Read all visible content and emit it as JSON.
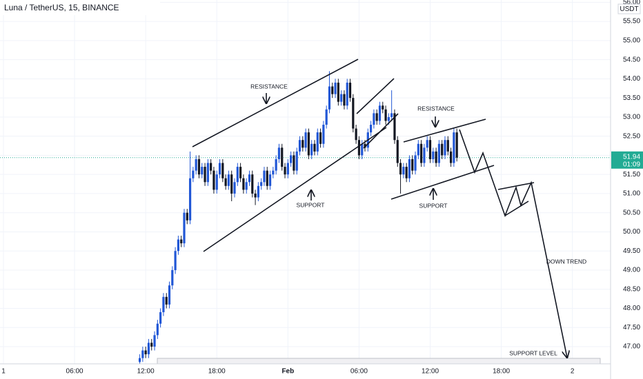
{
  "chart_data": {
    "type": "candlestick",
    "title": "Luna / TetherUS, 15, BINANCE",
    "currency": "USDT",
    "countdown": "01:09",
    "last_price": 51.94,
    "up_color": "#2157d6",
    "down_color": "#131722",
    "grid": true,
    "xlim": [
      -0.29,
      51.22
    ],
    "ylim": [
      46.55,
      56.06
    ],
    "xticks": [
      {
        "value": 0,
        "label": "1"
      },
      {
        "value": 6,
        "label": "06:00"
      },
      {
        "value": 12,
        "label": "12:00"
      },
      {
        "value": 18,
        "label": "18:00"
      },
      {
        "value": 24,
        "label": "Feb"
      },
      {
        "value": 30,
        "label": "06:00"
      },
      {
        "value": 36,
        "label": "12:00"
      },
      {
        "value": 42,
        "label": "18:00"
      },
      {
        "value": 48,
        "label": "2"
      }
    ],
    "yticks": [
      {
        "value": 47,
        "label": "47.00"
      },
      {
        "value": 47.5,
        "label": "47.50"
      },
      {
        "value": 48,
        "label": "48.00"
      },
      {
        "value": 48.5,
        "label": "48.50"
      },
      {
        "value": 49,
        "label": "49.00"
      },
      {
        "value": 49.5,
        "label": "49.50"
      },
      {
        "value": 50,
        "label": "50.00"
      },
      {
        "value": 50.5,
        "label": "50.50"
      },
      {
        "value": 51,
        "label": "51.00"
      },
      {
        "value": 51.5,
        "label": "51.50"
      },
      {
        "value": 52,
        "label": "52.00"
      },
      {
        "value": 52.5,
        "label": "52.50"
      },
      {
        "value": 53,
        "label": "53.00"
      },
      {
        "value": 53.5,
        "label": "53.50"
      },
      {
        "value": 54,
        "label": "54.00"
      },
      {
        "value": 54.5,
        "label": "54.50"
      },
      {
        "value": 55,
        "label": "55.00"
      },
      {
        "value": 55.5,
        "label": "55.50"
      },
      {
        "value": 56,
        "label": "56.00"
      }
    ],
    "annotations": [
      "RESISTANCE",
      "SUPPORT",
      "RESISTANCE",
      "SUPPORT",
      "DOWN TREND",
      "SUPPORT LEVEL"
    ],
    "x": [
      11.5,
      11.75,
      12,
      12.25,
      12.5,
      12.75,
      13,
      13.25,
      13.5,
      13.75,
      14,
      14.25,
      14.5,
      14.75,
      15,
      15.25,
      15.5,
      15.75,
      16,
      16.25,
      16.5,
      16.75,
      17,
      17.25,
      17.5,
      17.75,
      18,
      18.25,
      18.5,
      18.75,
      19,
      19.25,
      19.5,
      19.75,
      20,
      20.25,
      20.5,
      20.75,
      21,
      21.25,
      21.5,
      21.75,
      22,
      22.25,
      22.5,
      22.75,
      23,
      23.25,
      23.5,
      23.75,
      24,
      24.25,
      24.5,
      24.75,
      25,
      25.25,
      25.5,
      25.75,
      26,
      26.25,
      26.5,
      26.75,
      27,
      27.25,
      27.5,
      27.75,
      28,
      28.25,
      28.5,
      28.75,
      29,
      29.25,
      29.5,
      29.75,
      30,
      30.25,
      30.5,
      30.75,
      31,
      31.25,
      31.5,
      31.75,
      32,
      32.25,
      32.5,
      32.75,
      33,
      33.25,
      33.5,
      33.75,
      34,
      34.25,
      34.5,
      34.75,
      35,
      35.25,
      35.5,
      35.75,
      36,
      36.25,
      36.5,
      36.75,
      37,
      37.25,
      37.5,
      37.75,
      38,
      38.25
    ],
    "open": [
      46.6,
      46.7,
      46.9,
      46.8,
      47.1,
      47.0,
      47.3,
      47.6,
      47.9,
      48.3,
      48.1,
      48.6,
      49.0,
      49.5,
      49.8,
      49.7,
      50.5,
      50.3,
      51.4,
      51.6,
      51.9,
      51.5,
      51.7,
      51.3,
      51.8,
      51.6,
      51.1,
      51.5,
      51.8,
      51.4,
      51.2,
      51.5,
      51.0,
      51.3,
      51.7,
      51.4,
      51.1,
      51.3,
      51.5,
      51.0,
      50.9,
      51.2,
      51.3,
      51.6,
      51.2,
      51.5,
      51.6,
      51.9,
      52.2,
      51.7,
      51.5,
      51.8,
      52.0,
      51.6,
      52.1,
      52.4,
      52.2,
      52.6,
      52.0,
      52.3,
      52.1,
      52.6,
      52.3,
      52.8,
      53.2,
      53.8,
      53.6,
      53.9,
      53.4,
      53.6,
      53.3,
      53.9,
      53.5,
      52.7,
      52.4,
      52.0,
      52.3,
      52.2,
      52.6,
      52.8,
      53.1,
      52.9,
      53.3,
      53.2,
      52.9,
      53.0,
      53.1,
      52.4,
      51.8,
      51.5,
      51.7,
      51.4,
      51.9,
      51.6,
      52.0,
      52.3,
      51.8,
      52.2,
      52.4,
      51.9,
      52.1,
      51.8,
      52.3,
      52.0,
      52.4,
      52.1,
      51.8,
      52.6
    ],
    "high": [
      46.8,
      47.0,
      47.0,
      47.2,
      47.2,
      47.4,
      47.7,
      48.0,
      48.4,
      48.4,
      48.7,
      49.1,
      49.6,
      49.9,
      49.9,
      50.6,
      50.6,
      52.1,
      51.7,
      52.0,
      52.0,
      51.8,
      51.8,
      51.9,
      51.9,
      51.7,
      51.6,
      51.9,
      51.9,
      51.5,
      51.6,
      51.6,
      51.4,
      51.8,
      51.8,
      51.5,
      51.4,
      51.6,
      51.6,
      51.1,
      51.3,
      51.4,
      51.7,
      51.7,
      51.6,
      51.7,
      52.0,
      52.3,
      52.3,
      51.8,
      51.9,
      52.1,
      52.1,
      52.2,
      52.5,
      52.5,
      52.7,
      52.7,
      52.4,
      52.4,
      52.7,
      52.7,
      52.9,
      53.3,
      54.2,
      53.9,
      54.0,
      54.0,
      53.7,
      53.7,
      54.0,
      54.0,
      53.6,
      52.8,
      52.5,
      52.4,
      52.4,
      52.7,
      52.9,
      53.2,
      53.2,
      53.4,
      53.4,
      53.3,
      53.1,
      53.7,
      53.2,
      52.5,
      51.9,
      51.8,
      51.8,
      52.0,
      52.0,
      52.1,
      52.4,
      52.4,
      52.3,
      52.5,
      52.5,
      52.2,
      52.2,
      52.4,
      52.4,
      52.5,
      52.5,
      52.2,
      52.7,
      52.7
    ],
    "low": [
      46.5,
      46.6,
      46.7,
      46.7,
      46.9,
      46.9,
      47.2,
      47.5,
      47.8,
      48.0,
      48.0,
      48.5,
      48.9,
      49.4,
      49.6,
      49.6,
      50.2,
      50.2,
      51.3,
      51.5,
      51.4,
      51.4,
      51.2,
      51.2,
      51.5,
      51.0,
      51.0,
      51.4,
      51.3,
      51.1,
      51.1,
      50.8,
      50.9,
      51.2,
      51.3,
      51.0,
      51.0,
      51.2,
      50.9,
      50.7,
      50.8,
      51.1,
      51.2,
      51.1,
      51.1,
      51.4,
      51.5,
      51.8,
      51.6,
      51.4,
      51.4,
      51.7,
      51.5,
      51.5,
      52.0,
      52.1,
      52.1,
      51.9,
      51.9,
      52.0,
      52.0,
      52.2,
      52.2,
      52.7,
      53.1,
      53.5,
      53.5,
      53.3,
      53.3,
      53.2,
      53.2,
      53.4,
      52.6,
      52.3,
      51.9,
      51.9,
      52.1,
      52.1,
      52.5,
      52.7,
      52.8,
      52.8,
      53.1,
      52.8,
      52.8,
      52.9,
      52.3,
      51.7,
      51.0,
      51.4,
      51.3,
      51.3,
      51.5,
      51.5,
      51.9,
      51.7,
      51.7,
      52.1,
      51.8,
      51.8,
      51.7,
      51.7,
      51.9,
      51.9,
      52.0,
      51.7,
      51.7,
      51.84
    ],
    "close": [
      46.7,
      46.9,
      46.8,
      47.1,
      47.0,
      47.3,
      47.6,
      47.9,
      48.3,
      48.1,
      48.6,
      49.0,
      49.5,
      49.8,
      49.7,
      50.5,
      50.3,
      51.4,
      51.6,
      51.9,
      51.5,
      51.7,
      51.3,
      51.8,
      51.6,
      51.1,
      51.5,
      51.8,
      51.4,
      51.2,
      51.5,
      51.0,
      51.3,
      51.7,
      51.4,
      51.1,
      51.3,
      51.5,
      51.0,
      50.9,
      51.2,
      51.3,
      51.6,
      51.2,
      51.5,
      51.6,
      51.9,
      52.2,
      51.7,
      51.5,
      51.8,
      52.0,
      51.6,
      52.1,
      52.4,
      52.2,
      52.6,
      52.0,
      52.3,
      52.1,
      52.6,
      52.3,
      52.8,
      53.2,
      53.8,
      53.6,
      53.9,
      53.4,
      53.6,
      53.3,
      53.9,
      53.5,
      52.7,
      52.4,
      52.0,
      52.3,
      52.2,
      52.6,
      52.8,
      53.1,
      52.9,
      53.3,
      53.2,
      52.9,
      53.0,
      53.1,
      52.4,
      51.8,
      51.5,
      51.7,
      51.4,
      51.9,
      51.6,
      52.0,
      52.3,
      51.8,
      52.2,
      52.4,
      51.9,
      52.1,
      51.8,
      52.3,
      52.0,
      52.4,
      52.1,
      51.8,
      52.6,
      51.94
    ]
  }
}
